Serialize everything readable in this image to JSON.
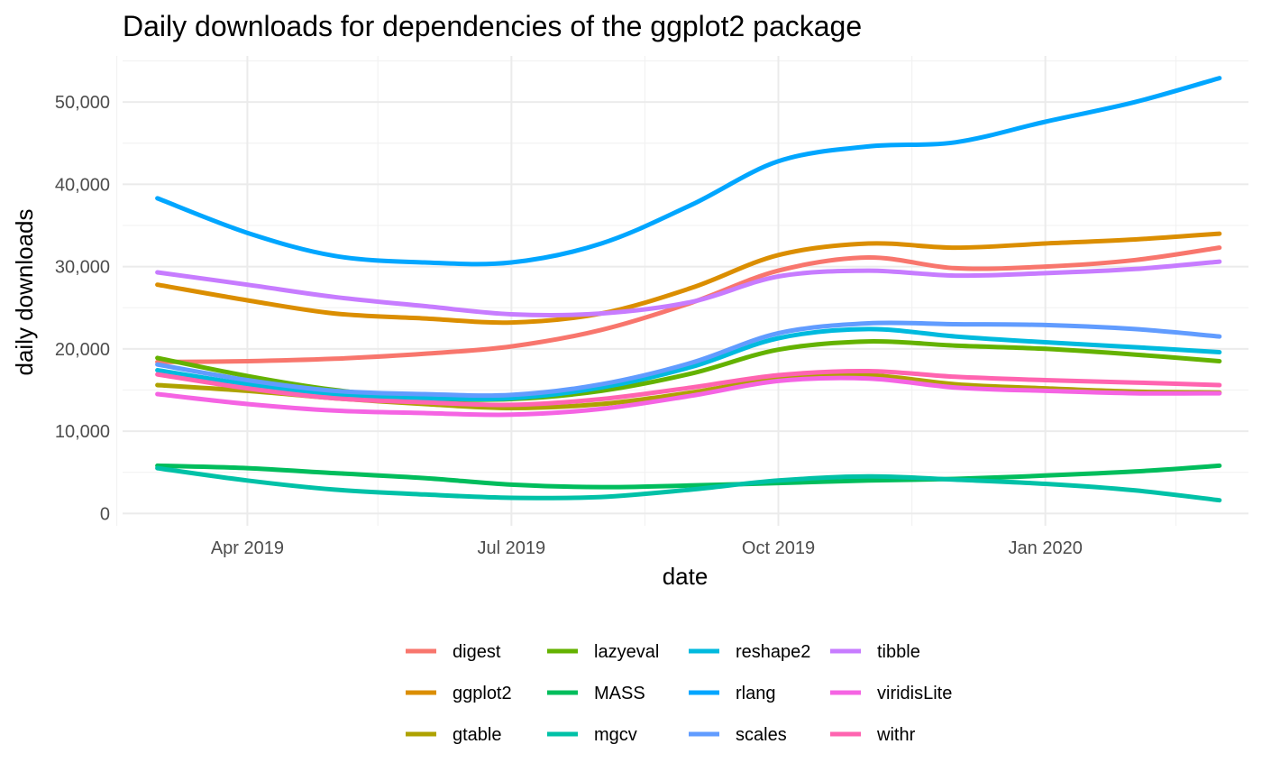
{
  "chart_data": {
    "type": "line",
    "title": "Daily downloads for dependencies of the ggplot2 package",
    "xlabel": "date",
    "ylabel": "daily downloads",
    "x_axis": {
      "type": "date",
      "range": [
        "2019-02-17",
        "2020-03-11"
      ],
      "ticks": [
        {
          "date": "2019-04-01",
          "label": "Apr 2019"
        },
        {
          "date": "2019-07-01",
          "label": "Jul 2019"
        },
        {
          "date": "2019-10-01",
          "label": "Oct 2019"
        },
        {
          "date": "2020-01-01",
          "label": "Jan 2020"
        }
      ],
      "minor_ticks": [
        "2019-02-15",
        "2019-05-16",
        "2019-08-16",
        "2019-11-16",
        "2020-02-15"
      ]
    },
    "y_axis": {
      "ylim": [
        -1500,
        55600
      ],
      "ticks": [
        {
          "value": 0,
          "label": "0"
        },
        {
          "value": 10000,
          "label": "10,000"
        },
        {
          "value": 20000,
          "label": "20,000"
        },
        {
          "value": 30000,
          "label": "30,000"
        },
        {
          "value": 40000,
          "label": "40,000"
        },
        {
          "value": 50000,
          "label": "50,000"
        }
      ],
      "minor_ticks": [
        5000,
        15000,
        25000,
        35000,
        45000,
        55000
      ]
    },
    "grid": true,
    "legend": {
      "position": "bottom",
      "ncol": 4
    },
    "x": [
      "2019-03-01",
      "2019-04-01",
      "2019-05-01",
      "2019-06-01",
      "2019-07-01",
      "2019-08-01",
      "2019-09-01",
      "2019-10-01",
      "2019-11-01",
      "2019-12-01",
      "2020-01-01",
      "2020-02-01",
      "2020-03-01"
    ],
    "series": [
      {
        "name": "digest",
        "color": "#F8766D",
        "values": [
          18400,
          18500,
          18800,
          19400,
          20300,
          22300,
          25600,
          29500,
          31100,
          29800,
          30000,
          30800,
          32300
        ]
      },
      {
        "name": "ggplot2",
        "color": "#DB8E00",
        "values": [
          27800,
          25900,
          24300,
          23700,
          23200,
          24300,
          27400,
          31400,
          32800,
          32300,
          32800,
          33300,
          34000
        ]
      },
      {
        "name": "gtable",
        "color": "#AEA200",
        "values": [
          15600,
          14900,
          14000,
          13300,
          12800,
          13300,
          14700,
          16400,
          16800,
          15700,
          15200,
          14800,
          14700
        ]
      },
      {
        "name": "lazyeval",
        "color": "#64B200",
        "values": [
          18900,
          16700,
          15000,
          14000,
          13900,
          14900,
          17000,
          19900,
          20900,
          20400,
          20000,
          19300,
          18500
        ]
      },
      {
        "name": "MASS",
        "color": "#00BD5C",
        "values": [
          5800,
          5500,
          4900,
          4300,
          3500,
          3200,
          3400,
          3700,
          4000,
          4200,
          4600,
          5100,
          5800
        ]
      },
      {
        "name": "mgcv",
        "color": "#00C1A7",
        "values": [
          5500,
          4000,
          2900,
          2300,
          1900,
          2000,
          2900,
          4000,
          4500,
          4100,
          3600,
          2800,
          1600
        ]
      },
      {
        "name": "reshape2",
        "color": "#00BADE",
        "values": [
          17400,
          15700,
          14500,
          14000,
          14000,
          15300,
          17800,
          21300,
          22400,
          21500,
          20800,
          20200,
          19600
        ]
      },
      {
        "name": "rlang",
        "color": "#00A6FF",
        "values": [
          38300,
          34100,
          31300,
          30500,
          30500,
          32800,
          37500,
          42800,
          44600,
          45100,
          47600,
          50000,
          52900
        ]
      },
      {
        "name": "scales",
        "color": "#619CFF",
        "values": [
          18100,
          16200,
          14900,
          14500,
          14400,
          15700,
          18300,
          21900,
          23100,
          23000,
          22900,
          22400,
          21500
        ]
      },
      {
        "name": "tibble",
        "color": "#C77CFF",
        "values": [
          29300,
          27800,
          26300,
          25200,
          24200,
          24300,
          25700,
          28800,
          29500,
          28900,
          29200,
          29700,
          30600
        ]
      },
      {
        "name": "viridisLite",
        "color": "#F564E3",
        "values": [
          14500,
          13300,
          12500,
          12200,
          12000,
          12700,
          14300,
          16100,
          16400,
          15300,
          14900,
          14600,
          14600
        ]
      },
      {
        "name": "withr",
        "color": "#FF64B0",
        "values": [
          16900,
          15200,
          14000,
          13500,
          13200,
          13900,
          15300,
          16800,
          17300,
          16600,
          16200,
          15900,
          15600
        ]
      }
    ]
  }
}
